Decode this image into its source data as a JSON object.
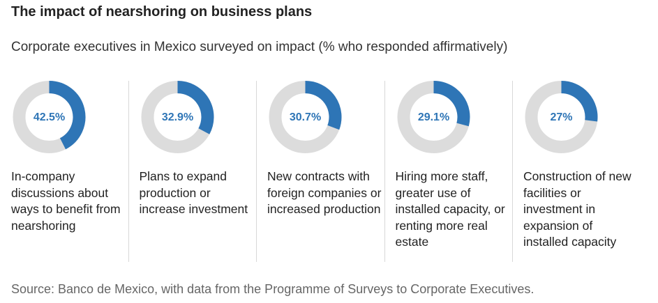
{
  "chart_data": {
    "type": "donut",
    "title": "The impact of nearshoring on business plans",
    "subtitle": "Corporate executives in Mexico surveyed on impact (% who responded affirmatively)",
    "categories": [
      "In-company discussions about ways to benefit from nearshoring",
      "Plans to expand production or increase investment",
      "New contracts with foreign companies or increased production",
      "Hiring more staff, greater use of installed capacity, or renting more real estate",
      "Construction of new facilities or investment in expansion of installed capacity"
    ],
    "values": [
      42.5,
      32.9,
      30.7,
      29.1,
      27
    ],
    "value_labels": [
      "42.5%",
      "32.9%",
      "30.7%",
      "29.1%",
      "27%"
    ],
    "color": "#2e75b6",
    "track_color": "#dcdcdc",
    "source": "Source: Banco de Mexico, with data from the Programme of Surveys to Corporate Executives."
  }
}
